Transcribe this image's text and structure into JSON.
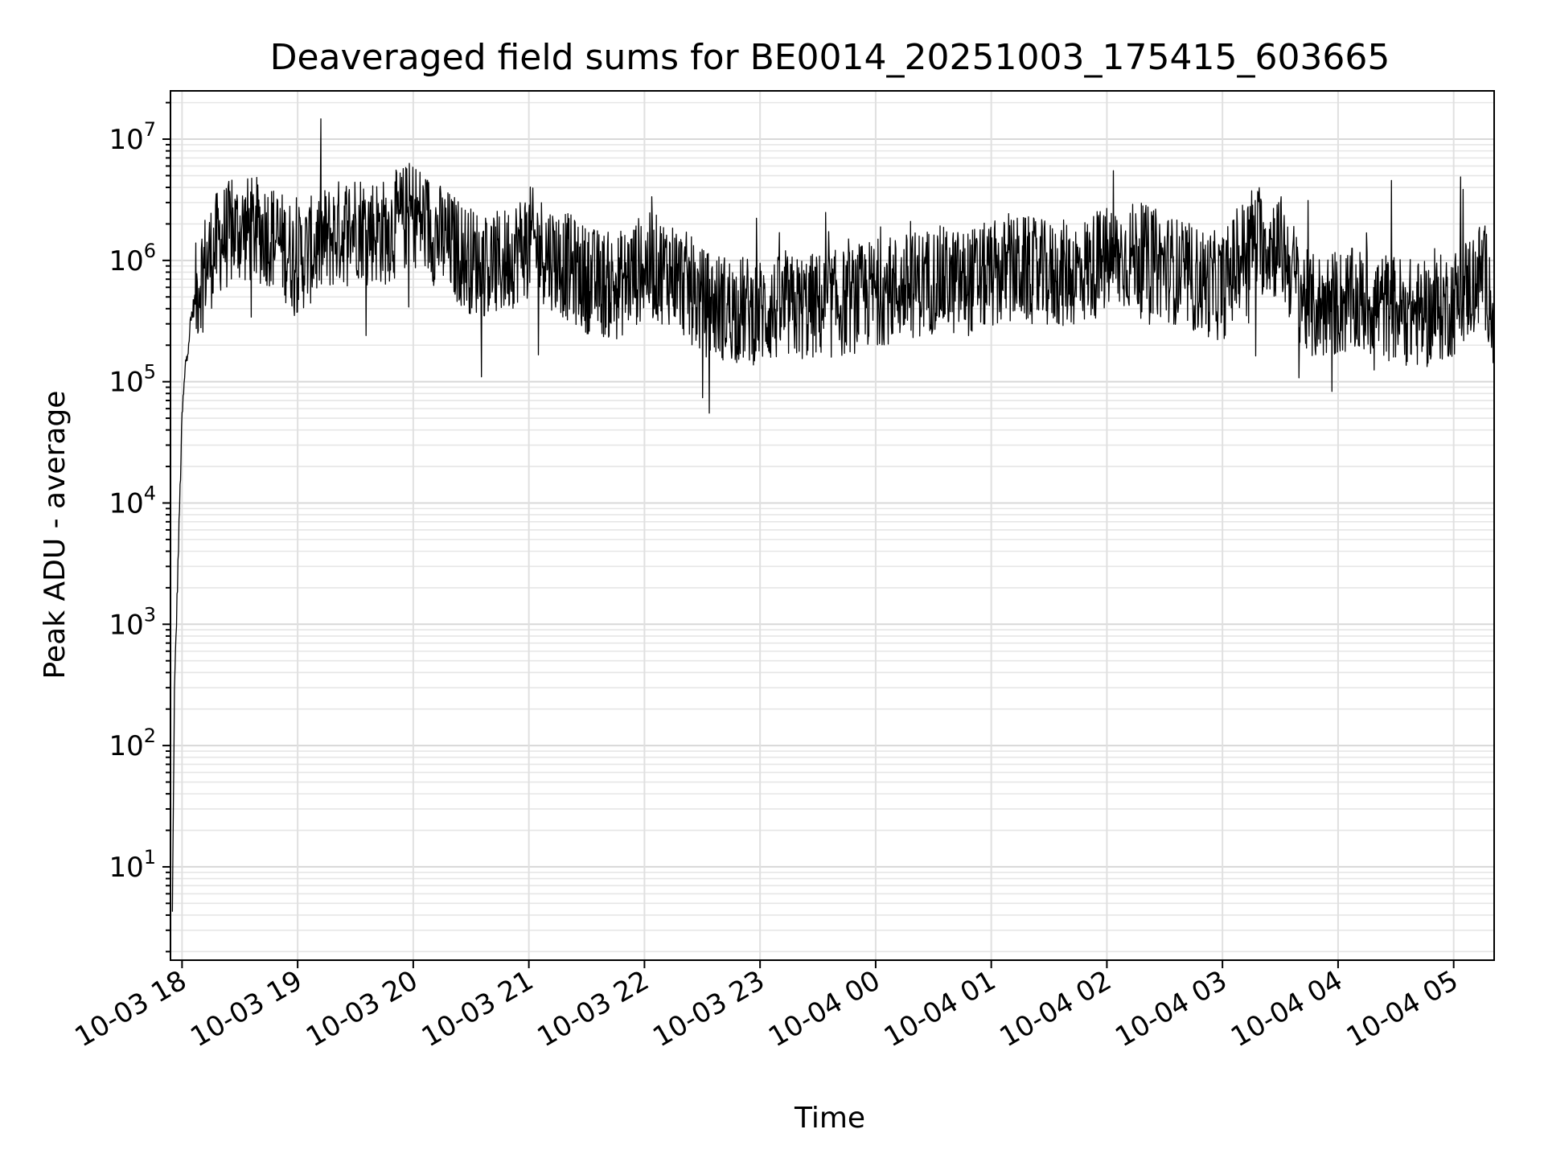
{
  "chart_data": {
    "type": "line",
    "title": "Deaveraged field sums for BE0014_20251003_175415_603665",
    "xlabel": "Time",
    "ylabel": "Peak ADU - average",
    "yscale": "log",
    "ylim": [
      1.7,
      25000000
    ],
    "xlim": [
      "2025-10-03 17:54",
      "2025-10-04 05:21"
    ],
    "grid": "major and minor",
    "line_color": "#000000",
    "x_ticks": [
      "10-03 18",
      "10-03 19",
      "10-03 20",
      "10-03 21",
      "10-03 22",
      "10-03 23",
      "10-04 00",
      "10-04 01",
      "10-04 02",
      "10-04 03",
      "10-04 04",
      "10-04 05"
    ],
    "y_ticks": [
      {
        "base": "10",
        "exp": "1",
        "value": 10
      },
      {
        "base": "10",
        "exp": "2",
        "value": 100
      },
      {
        "base": "10",
        "exp": "3",
        "value": 1000
      },
      {
        "base": "10",
        "exp": "4",
        "value": 10000
      },
      {
        "base": "10",
        "exp": "5",
        "value": 100000
      },
      {
        "base": "10",
        "exp": "6",
        "value": 1000000
      },
      {
        "base": "10",
        "exp": "7",
        "value": 10000000
      }
    ],
    "series": [
      {
        "x": [
          "2025-10-03 17:55",
          "2025-10-03 17:56",
          "2025-10-03 17:58",
          "2025-10-03 18:00",
          "2025-10-03 18:02",
          "2025-10-03 18:05",
          "2025-10-03 18:10",
          "2025-10-03 18:20",
          "2025-10-03 18:30",
          "2025-10-03 18:45",
          "2025-10-03 19:00",
          "2025-10-03 19:15",
          "2025-10-03 19:30",
          "2025-10-03 19:45",
          "2025-10-03 20:00",
          "2025-10-03 20:15",
          "2025-10-03 20:30",
          "2025-10-03 20:45",
          "2025-10-03 21:00",
          "2025-10-03 21:15",
          "2025-10-03 21:30",
          "2025-10-03 21:45",
          "2025-10-03 22:00",
          "2025-10-03 22:15",
          "2025-10-03 22:30",
          "2025-10-03 22:45",
          "2025-10-03 23:00",
          "2025-10-03 23:15",
          "2025-10-03 23:30",
          "2025-10-03 23:45",
          "2025-10-04 00:00",
          "2025-10-04 00:15",
          "2025-10-04 00:30",
          "2025-10-04 00:45",
          "2025-10-04 01:00",
          "2025-10-04 01:15",
          "2025-10-04 01:30",
          "2025-10-04 01:45",
          "2025-10-04 02:00",
          "2025-10-04 02:15",
          "2025-10-04 02:30",
          "2025-10-04 02:45",
          "2025-10-04 03:00",
          "2025-10-04 03:15",
          "2025-10-04 03:30",
          "2025-10-04 03:45",
          "2025-10-04 04:00",
          "2025-10-04 04:15",
          "2025-10-04 04:30",
          "2025-10-04 04:45",
          "2025-10-04 05:00",
          "2025-10-04 05:15",
          "2025-10-04 05:20",
          "2025-10-04 05:21"
        ],
        "y": [
          4,
          250,
          3500,
          50000,
          150000,
          350000,
          800000,
          1500000,
          1800000,
          1700000,
          1000000,
          1500000,
          2000000,
          1700000,
          2500000,
          1500000,
          1000000,
          900000,
          1500000,
          1000000,
          700000,
          600000,
          900000,
          800000,
          450000,
          400000,
          380000,
          400000,
          420000,
          450000,
          550000,
          600000,
          700000,
          650000,
          750000,
          850000,
          750000,
          800000,
          1000000,
          1100000,
          900000,
          700000,
          600000,
          1500000,
          1300000,
          400000,
          450000,
          450000,
          400000,
          350000,
          450000,
          800000,
          500000,
          90000
        ]
      }
    ]
  }
}
